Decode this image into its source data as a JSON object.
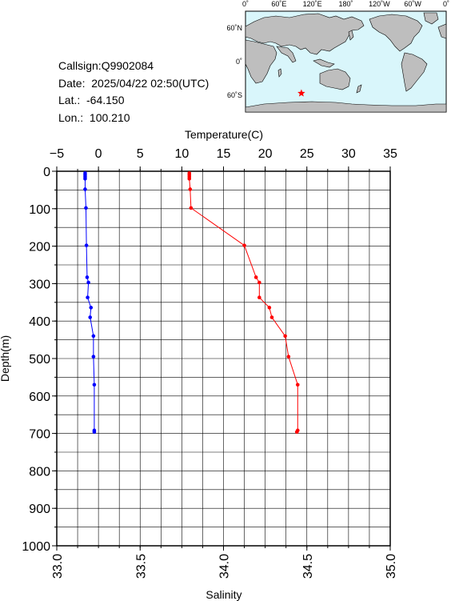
{
  "info": {
    "callsign": "Callsign:Q9902084",
    "date": "Date:  2025/04/22 02:50(UTC)",
    "lat": "Lat.:  -64.150",
    "lon": "Lon.:  100.210"
  },
  "map": {
    "lon_ticks": [
      "0˚",
      "60˚E",
      "120˚E",
      "180˚",
      "120˚W",
      "60˚W",
      "0˚"
    ],
    "lat_ticks": [
      "60˚N",
      "0˚",
      "60˚S"
    ],
    "ocean_color": "#d9f6fb",
    "land_color": "#bebebe",
    "marker": {
      "lon": 100.21,
      "lat": -64.15,
      "color": "#ff0000"
    }
  },
  "chart_data": {
    "type": "line",
    "title": "",
    "ylabel": "Depth(m)",
    "ylim": [
      0,
      1000
    ],
    "yticks": [
      "0",
      "100",
      "200",
      "300",
      "400",
      "500",
      "600",
      "700",
      "800",
      "900",
      "1000"
    ],
    "top_axis": {
      "label": "Temperature(C)",
      "range": [
        -5,
        35
      ],
      "ticks": [
        "−5",
        "0",
        "5",
        "10",
        "15",
        "20",
        "25",
        "30",
        "35"
      ]
    },
    "bottom_axis": {
      "label": "Salinity",
      "range": [
        33.0,
        35.0
      ],
      "ticks": [
        "33.0",
        "33.5",
        "34.0",
        "34.5",
        "35.0"
      ]
    },
    "grid": true,
    "series": [
      {
        "axis": "top",
        "color": "#ff0000",
        "points": [
          [
            10.9,
            5
          ],
          [
            10.9,
            10
          ],
          [
            10.9,
            15
          ],
          [
            10.9,
            20
          ],
          [
            11.0,
            48
          ],
          [
            11.1,
            98
          ],
          [
            17.5,
            198
          ],
          [
            18.9,
            283
          ],
          [
            19.3,
            297
          ],
          [
            19.3,
            337
          ],
          [
            20.5,
            364
          ],
          [
            20.8,
            390
          ],
          [
            22.4,
            440
          ],
          [
            22.8,
            495
          ],
          [
            23.9,
            570
          ],
          [
            23.9,
            692
          ],
          [
            23.8,
            696
          ]
        ]
      },
      {
        "axis": "bottom",
        "color": "#0000ff",
        "points": [
          [
            33.17,
            5
          ],
          [
            33.17,
            10
          ],
          [
            33.17,
            15
          ],
          [
            33.17,
            20
          ],
          [
            33.17,
            48
          ],
          [
            33.175,
            98
          ],
          [
            33.178,
            198
          ],
          [
            33.182,
            283
          ],
          [
            33.19,
            297
          ],
          [
            33.185,
            337
          ],
          [
            33.205,
            364
          ],
          [
            33.2,
            390
          ],
          [
            33.22,
            440
          ],
          [
            33.22,
            495
          ],
          [
            33.225,
            570
          ],
          [
            33.225,
            692
          ],
          [
            33.225,
            696
          ]
        ]
      }
    ]
  }
}
